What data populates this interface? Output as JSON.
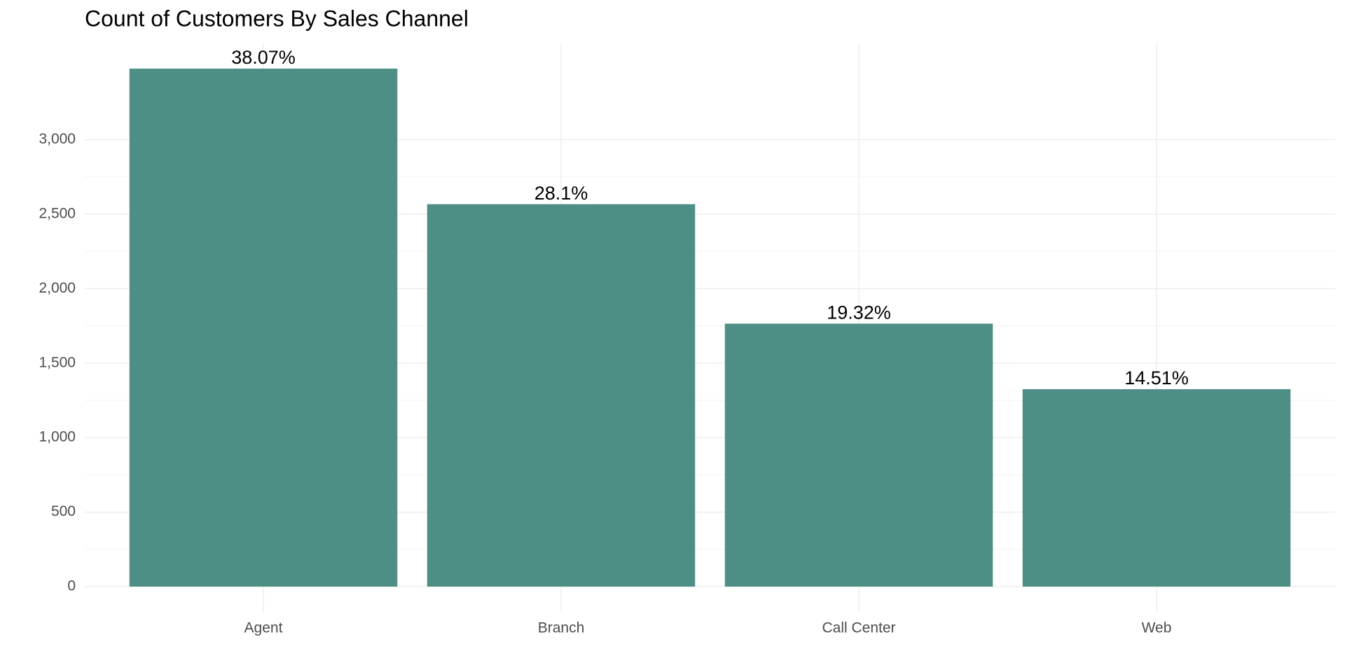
{
  "chart_data": {
    "type": "bar",
    "title": "Count of Customers By Sales Channel",
    "categories": [
      "Agent",
      "Branch",
      "Call Center",
      "Web"
    ],
    "values": [
      3477,
      2567,
      1765,
      1325
    ],
    "share_labels": [
      "38.07%",
      "28.1%",
      "19.32%",
      "14.51%"
    ],
    "color": "#4d8f84",
    "ylim": [
      -174,
      3651
    ],
    "yticks": [
      0,
      500,
      {
        "value": 1000,
        "label": "1,000"
      },
      {
        "value": 1500,
        "label": "1,500"
      },
      {
        "value": 2000,
        "label": "2,000"
      },
      {
        "value": 2500,
        "label": "2,500"
      },
      {
        "value": 3000,
        "label": "3,000"
      }
    ],
    "grid": true
  }
}
